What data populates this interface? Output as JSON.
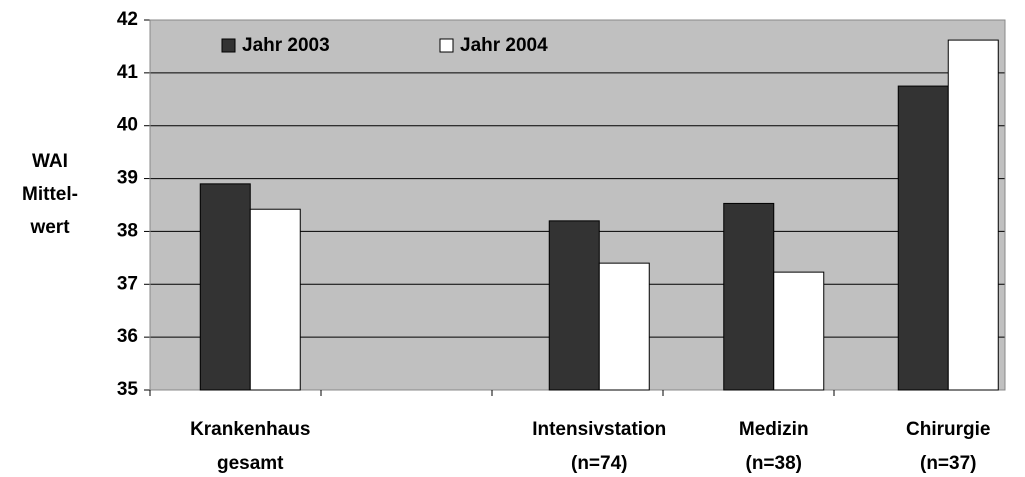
{
  "chart_data": {
    "type": "bar",
    "ylabel": [
      "WAI",
      "Mittel-",
      "wert"
    ],
    "categories": [
      [
        "Krankenhaus",
        "gesamt"
      ],
      null,
      [
        "Intensivstation",
        "(n=74)"
      ],
      [
        "Medizin",
        "(n=38)"
      ],
      [
        "Chirurgie",
        "(n=37)"
      ]
    ],
    "series": [
      {
        "name": "Jahr 2003",
        "color": "#333333",
        "values": [
          38.9,
          null,
          38.2,
          38.53,
          40.75
        ]
      },
      {
        "name": "Jahr 2004",
        "color": "#ffffff",
        "values": [
          38.42,
          null,
          37.4,
          37.23,
          41.62
        ]
      }
    ],
    "ylim": [
      35,
      42
    ],
    "yticks": [
      35,
      36,
      37,
      38,
      39,
      40,
      41,
      42
    ],
    "grid": true,
    "legend": "top-left"
  }
}
